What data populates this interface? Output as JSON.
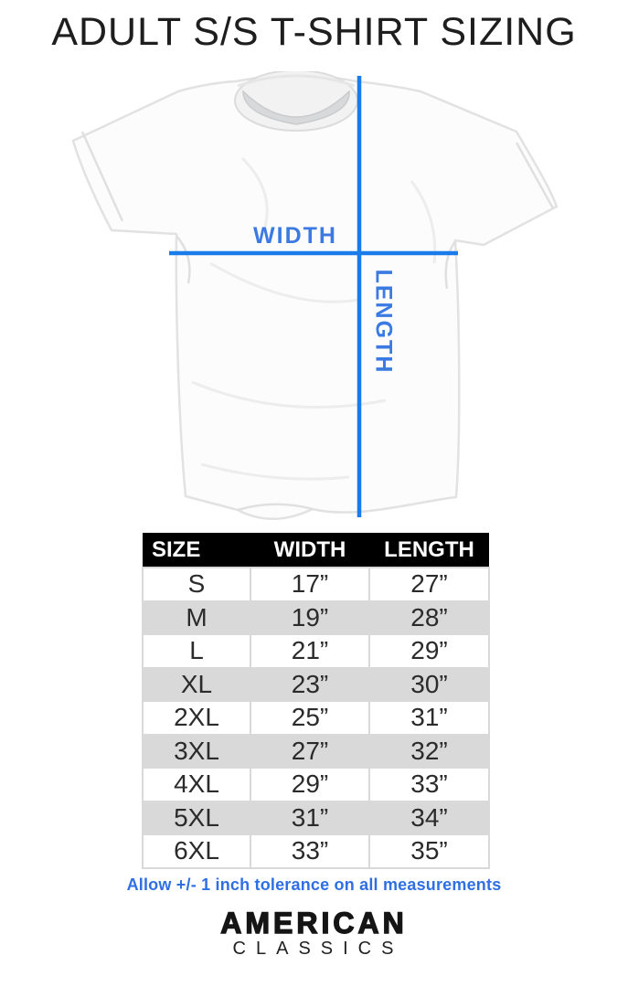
{
  "page": {
    "title": "ADULT S/S T-SHIRT SIZING",
    "background_color": "#ffffff"
  },
  "shirt_diagram": {
    "width_label": "WIDTH",
    "length_label": "LENGTH",
    "line_color": "#1a7ceb",
    "label_color": "#3b79e3"
  },
  "size_chart": {
    "columns": [
      "SIZE",
      "WIDTH",
      "LENGTH"
    ],
    "rows": [
      [
        "S",
        "17”",
        "27”"
      ],
      [
        "M",
        "19”",
        "28”"
      ],
      [
        "L",
        "21”",
        "29”"
      ],
      [
        "XL",
        "23”",
        "30”"
      ],
      [
        "2XL",
        "25”",
        "31”"
      ],
      [
        "3XL",
        "27”",
        "32”"
      ],
      [
        "4XL",
        "29”",
        "33”"
      ],
      [
        "5XL",
        "31”",
        "34”"
      ],
      [
        "6XL",
        "33”",
        "35”"
      ]
    ],
    "header_bg": "#000000",
    "header_text_color": "#ffffff",
    "stripe_color": "#d9d9d9"
  },
  "tolerance_note": {
    "text": "Allow +/- 1 inch tolerance on all measurements",
    "color": "#2f6fe3"
  },
  "brand": {
    "line1": "AMERICAN",
    "line2": "CLASSICS"
  }
}
